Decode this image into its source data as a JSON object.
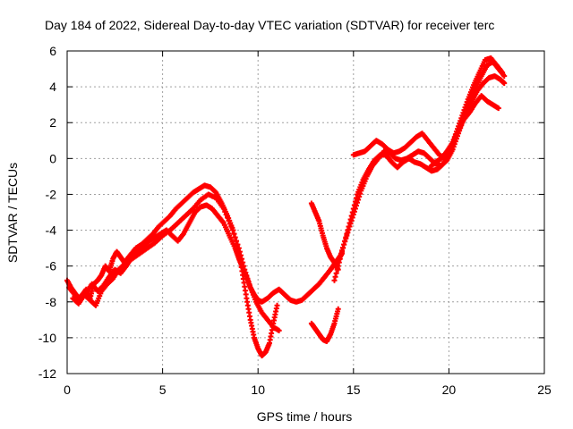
{
  "chart_data": {
    "type": "scatter",
    "title": "Day 184 of 2022, Sidereal Day-to-day VTEC variation (SDTVAR) for receiver terc",
    "xlabel": "GPS time / hours",
    "ylabel": "SDTVAR / TECUs",
    "xlim": [
      0,
      25
    ],
    "ylim": [
      -12,
      6
    ],
    "xticks": [
      0,
      5,
      10,
      15,
      20,
      25
    ],
    "yticks": [
      -12,
      -10,
      -8,
      -6,
      -4,
      -2,
      0,
      2,
      4,
      6
    ],
    "grid": true,
    "legend": "none",
    "marker": "plus",
    "color": "#ff0000",
    "series": [
      {
        "x": [
          0.0,
          0.2,
          0.4,
          0.6,
          0.8,
          1.0,
          1.2,
          1.4,
          1.6,
          1.8,
          2.0,
          2.2,
          2.4,
          2.6,
          2.8,
          3.0,
          3.3,
          3.6,
          3.9,
          4.2,
          4.5,
          4.8,
          5.1,
          5.4,
          5.7,
          6.0,
          6.3,
          6.6,
          6.9,
          7.2,
          7.5,
          7.8,
          8.1,
          8.4,
          8.7,
          9.0,
          9.2,
          9.4,
          9.6,
          9.8,
          10.0,
          10.2,
          10.4,
          10.6,
          10.8,
          11.0
        ],
        "y": [
          -6.8,
          -7.2,
          -7.5,
          -7.8,
          -7.6,
          -7.3,
          -7.8,
          -7.0,
          -6.8,
          -6.5,
          -6.0,
          -6.3,
          -5.6,
          -5.2,
          -5.5,
          -5.8,
          -5.4,
          -5.0,
          -4.8,
          -4.5,
          -4.2,
          -3.8,
          -3.5,
          -3.2,
          -2.8,
          -2.5,
          -2.2,
          -1.9,
          -1.7,
          -1.5,
          -1.6,
          -1.9,
          -2.5,
          -3.2,
          -4.0,
          -5.2,
          -6.5,
          -7.8,
          -9.0,
          -10.0,
          -10.6,
          -11.0,
          -10.8,
          -10.3,
          -9.2,
          -8.2
        ]
      },
      {
        "x": [
          0.1,
          0.4,
          0.7,
          1.0,
          1.3,
          1.6,
          1.9,
          2.2,
          2.5,
          2.8,
          3.1,
          3.4,
          3.7,
          4.0,
          4.3,
          4.6,
          4.9,
          5.2,
          5.5,
          5.8,
          6.1,
          6.4,
          6.7,
          7.0,
          7.3,
          7.6,
          7.9,
          8.2,
          8.5,
          8.8,
          9.0,
          9.2,
          9.4,
          9.6,
          9.8,
          10.0,
          10.2,
          10.5,
          10.8,
          11.1,
          11.4,
          11.7,
          12.0,
          12.3,
          12.6,
          12.9,
          13.2,
          13.5,
          13.8,
          14.0,
          14.2,
          14.4
        ],
        "y": [
          -7.2,
          -7.6,
          -7.9,
          -7.5,
          -7.0,
          -7.4,
          -7.1,
          -6.6,
          -6.2,
          -6.4,
          -6.0,
          -5.5,
          -5.2,
          -4.9,
          -4.6,
          -4.4,
          -4.2,
          -4.0,
          -4.3,
          -4.6,
          -4.2,
          -3.6,
          -3.0,
          -2.7,
          -2.6,
          -2.8,
          -3.2,
          -3.6,
          -4.3,
          -5.0,
          -5.6,
          -6.1,
          -6.6,
          -7.2,
          -7.6,
          -7.9,
          -8.0,
          -7.8,
          -7.5,
          -7.3,
          -7.6,
          -7.9,
          -8.0,
          -7.9,
          -7.6,
          -7.3,
          -7.0,
          -6.6,
          -6.2,
          -5.9,
          -5.6,
          -5.3
        ]
      },
      {
        "x": [
          0.3,
          0.6,
          0.9,
          1.2,
          1.5,
          1.8,
          2.1,
          2.4,
          2.7,
          3.0,
          3.4,
          3.8,
          4.2,
          4.6,
          5.0,
          5.4,
          5.8,
          6.2,
          6.6,
          7.0,
          7.4,
          7.8,
          8.2,
          8.6,
          9.0,
          9.3,
          9.6,
          9.9,
          10.2,
          10.5,
          10.8,
          11.1
        ],
        "y": [
          -7.8,
          -8.1,
          -7.6,
          -7.9,
          -8.2,
          -7.4,
          -7.0,
          -6.7,
          -6.2,
          -5.9,
          -5.6,
          -5.3,
          -5.0,
          -4.7,
          -4.3,
          -4.0,
          -3.6,
          -3.2,
          -2.8,
          -2.3,
          -2.0,
          -2.2,
          -2.8,
          -3.8,
          -5.0,
          -6.2,
          -7.2,
          -8.0,
          -8.6,
          -9.0,
          -9.4,
          -9.6
        ]
      },
      {
        "x": [
          12.8,
          13.0,
          13.2,
          13.4,
          13.6,
          13.8,
          14.0,
          14.2
        ],
        "y": [
          -2.5,
          -3.0,
          -3.5,
          -4.3,
          -5.0,
          -5.5,
          -5.8,
          -6.2
        ]
      },
      {
        "x": [
          12.8,
          13.0,
          13.2,
          13.4,
          13.6,
          13.8,
          14.0,
          14.2
        ],
        "y": [
          -9.2,
          -9.5,
          -9.8,
          -10.1,
          -10.2,
          -9.8,
          -9.2,
          -8.4
        ]
      },
      {
        "x": [
          14.0,
          14.3,
          14.6,
          14.9,
          15.2,
          15.5,
          15.8,
          16.1,
          16.4,
          16.7,
          17.0,
          17.3,
          17.6,
          17.9,
          18.2,
          18.5,
          18.8,
          19.1,
          19.4,
          19.7,
          20.0,
          20.3,
          20.6,
          20.9,
          21.2,
          21.5,
          21.8,
          22.1,
          22.4,
          22.7,
          22.9
        ],
        "y": [
          -6.8,
          -5.6,
          -4.4,
          -3.2,
          -2.0,
          -1.2,
          -0.6,
          -0.1,
          0.2,
          0.2,
          -0.2,
          -0.5,
          -0.2,
          0.0,
          -0.2,
          -0.3,
          -0.5,
          -0.7,
          -0.6,
          -0.3,
          0.3,
          1.0,
          1.8,
          2.6,
          3.2,
          3.8,
          4.2,
          4.5,
          4.6,
          4.4,
          4.2
        ]
      },
      {
        "x": [
          14.2,
          14.5,
          14.8,
          15.1,
          15.4,
          15.7,
          16.0,
          16.3,
          16.6,
          16.9,
          17.2,
          17.5,
          17.8,
          18.1,
          18.4,
          18.7,
          19.0,
          19.3,
          19.6,
          19.9,
          20.2,
          20.5,
          20.8,
          21.1,
          21.4,
          21.7,
          22.0,
          22.3,
          22.6,
          22.9
        ],
        "y": [
          -5.8,
          -4.8,
          -3.8,
          -2.8,
          -1.8,
          -1.0,
          -0.4,
          0.0,
          0.4,
          0.3,
          0.0,
          -0.1,
          0.0,
          0.2,
          0.4,
          0.3,
          0.0,
          -0.3,
          -0.4,
          -0.1,
          0.5,
          1.4,
          2.3,
          3.1,
          3.9,
          4.6,
          5.2,
          5.4,
          5.0,
          4.6
        ]
      },
      {
        "x": [
          15.0,
          15.3,
          15.6,
          15.9,
          16.2,
          16.5,
          16.8,
          17.1,
          17.4,
          17.7,
          18.0,
          18.3,
          18.6,
          18.9,
          19.2,
          19.5,
          19.8,
          20.1,
          20.4,
          20.7,
          21.0,
          21.3,
          21.6,
          21.9,
          22.2,
          22.5,
          22.8
        ],
        "y": [
          0.2,
          0.3,
          0.4,
          0.7,
          1.0,
          0.8,
          0.5,
          0.3,
          0.4,
          0.6,
          0.9,
          1.2,
          1.4,
          1.0,
          0.6,
          0.2,
          0.0,
          0.6,
          1.5,
          2.4,
          3.3,
          4.1,
          4.8,
          5.5,
          5.6,
          5.2,
          4.8
        ]
      },
      {
        "x": [
          19.0,
          19.3,
          19.6,
          19.9,
          20.2,
          20.5,
          20.8,
          21.1,
          21.4,
          21.7,
          22.0,
          22.3,
          22.6
        ],
        "y": [
          -0.5,
          -0.2,
          0.0,
          0.4,
          0.9,
          1.6,
          2.2,
          2.6,
          3.1,
          3.5,
          3.2,
          3.0,
          2.8
        ]
      }
    ]
  }
}
